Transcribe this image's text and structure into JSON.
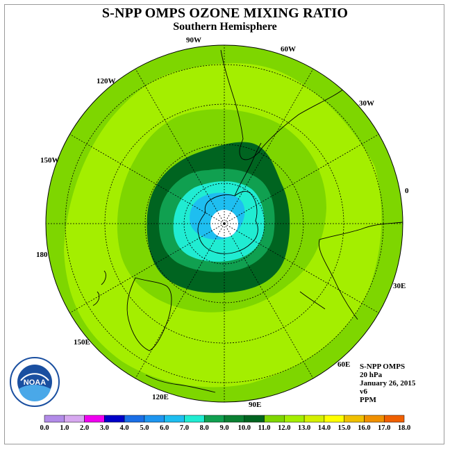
{
  "title": "S-NPP OMPS OZONE MIXING RATIO",
  "subtitle": "Southern Hemisphere",
  "longitude_labels": [
    "90W",
    "60W",
    "120W",
    "30W",
    "150W",
    "0",
    "180",
    "30E",
    "150E",
    "60E",
    "120E",
    "90E"
  ],
  "info": {
    "instrument": "S-NPP OMPS",
    "level": "20 hPa",
    "date": "January 26, 2015",
    "version": "v6",
    "units": "PPM"
  },
  "logo_text": "NOAA",
  "colorbar": {
    "ticks": [
      "0.0",
      "1.0",
      "2.0",
      "3.0",
      "4.0",
      "5.0",
      "6.0",
      "7.0",
      "8.0",
      "9.0",
      "10.0",
      "11.0",
      "12.0",
      "13.0",
      "14.0",
      "15.0",
      "16.0",
      "17.0",
      "18.0"
    ],
    "colors": [
      "#b28be8",
      "#d7a8f0",
      "#f000f0",
      "#0000c8",
      "#1a6fe6",
      "#1e96f0",
      "#1ebef0",
      "#20ecd2",
      "#10a050",
      "#0a8032",
      "#006420",
      "#7ed600",
      "#a4ee00",
      "#d4f000",
      "#ffff00",
      "#f0c000",
      "#f09000",
      "#f06000",
      "#e00000",
      "#8b5a3c"
    ]
  }
}
